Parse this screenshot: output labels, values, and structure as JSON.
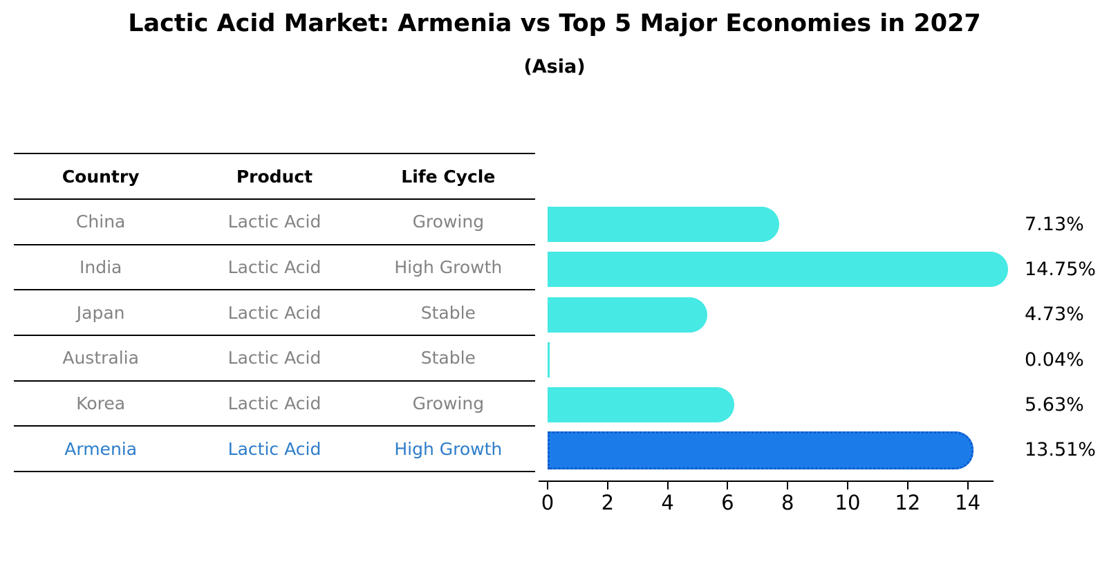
{
  "title": "Lactic Acid Market: Armenia vs Top 5 Major Economies in 2027",
  "subtitle": "(Asia)",
  "table": {
    "headers": [
      "Country",
      "Product",
      "Life Cycle"
    ],
    "rows": [
      {
        "country": "China",
        "product": "Lactic Acid",
        "life_cycle": "Growing",
        "highlight": false
      },
      {
        "country": "India",
        "product": "Lactic Acid",
        "life_cycle": "High Growth",
        "highlight": false
      },
      {
        "country": "Japan",
        "product": "Lactic Acid",
        "life_cycle": "Stable",
        "highlight": false
      },
      {
        "country": "Australia",
        "product": "Lactic Acid",
        "life_cycle": "Stable",
        "highlight": false
      },
      {
        "country": "Korea",
        "product": "Lactic Acid",
        "life_cycle": "Growing",
        "highlight": false
      },
      {
        "country": "Armenia",
        "product": "Lactic Acid",
        "life_cycle": "High Growth",
        "highlight": true
      }
    ]
  },
  "chart_data": {
    "type": "bar",
    "orientation": "horizontal",
    "title": "Lactic Acid Market: Armenia vs Top 5 Major Economies in 2027",
    "subtitle": "(Asia)",
    "categories": [
      "China",
      "India",
      "Japan",
      "Australia",
      "Korea",
      "Armenia"
    ],
    "values": [
      7.13,
      14.75,
      4.73,
      0.04,
      5.63,
      13.51
    ],
    "value_labels": [
      "7.13%",
      "14.75%",
      "4.73%",
      "0.04%",
      "5.63%",
      "13.51%"
    ],
    "x_ticks": [
      0,
      2,
      4,
      6,
      8,
      10,
      12,
      14
    ],
    "x_tick_labels": [
      "0",
      "2",
      "4",
      "6",
      "8",
      "10",
      "12",
      "14"
    ],
    "xlim": [
      0,
      14.85
    ],
    "grid": false,
    "legend": "none",
    "bar_color": "#46e9e4",
    "highlight_bar_color": "#1b7ce9",
    "highlight_border_color": "#1059c9",
    "highlight_text_color": "#2e7dca",
    "row_text_color": "#838383",
    "highlight_index": 5
  }
}
